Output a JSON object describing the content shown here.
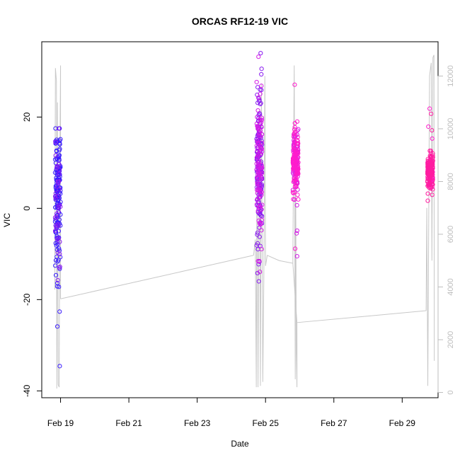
{
  "chart_data": {
    "type": "scatter",
    "title": "ORCAS RF12-19 VIC",
    "xlabel": "Date",
    "ylabel": "VIC",
    "x_ticks": [
      "Feb 19",
      "Feb 21",
      "Feb 23",
      "Feb 25",
      "Feb 27",
      "Feb 29"
    ],
    "y_ticks": [
      -40,
      -20,
      0,
      20
    ],
    "y_right_ticks": [
      0,
      2000,
      4000,
      6000,
      8000,
      10000,
      12000
    ],
    "xlim_days": [
      18.35,
      29.95
    ],
    "ylim": [
      -41.5,
      36.5
    ],
    "y_right_lim": [
      -200,
      13300
    ],
    "colors": {
      "altitude_line": "#c8c8c8",
      "right_axis": "#bdbdbd",
      "flight_colors": [
        "#3a1cff",
        "#8a1cf0",
        "#d41ce6",
        "#ff1ccc",
        "#ff1ca0"
      ]
    },
    "series": [
      {
        "values": {
          "center_day": 18.82,
          "mean": 3,
          "spread": 14,
          "min": -40.5,
          "max": 17.5,
          "n": 190
        }
      },
      {
        "values": {
          "center_day": 24.72,
          "mean": 8,
          "spread": 14,
          "min": -16,
          "max": 34,
          "n": 260
        }
      },
      {
        "values": {
          "center_day": 25.78,
          "mean": 10,
          "spread": 7,
          "min": -11.5,
          "max": 31.5,
          "n": 170
        }
      },
      {
        "values": {
          "center_day": 29.72,
          "mean": 8,
          "spread": 3.5,
          "min": -4,
          "max": 23,
          "n": 190
        }
      }
    ],
    "altitude_right_axis": {
      "connector_points": [
        {
          "day": 18.9,
          "alt": 3550
        },
        {
          "day": 24.55,
          "alt": 5200
        },
        {
          "day": 25.7,
          "alt": 4900
        },
        {
          "day": 25.82,
          "alt": 2650
        },
        {
          "day": 29.6,
          "alt": 3100
        }
      ]
    }
  }
}
